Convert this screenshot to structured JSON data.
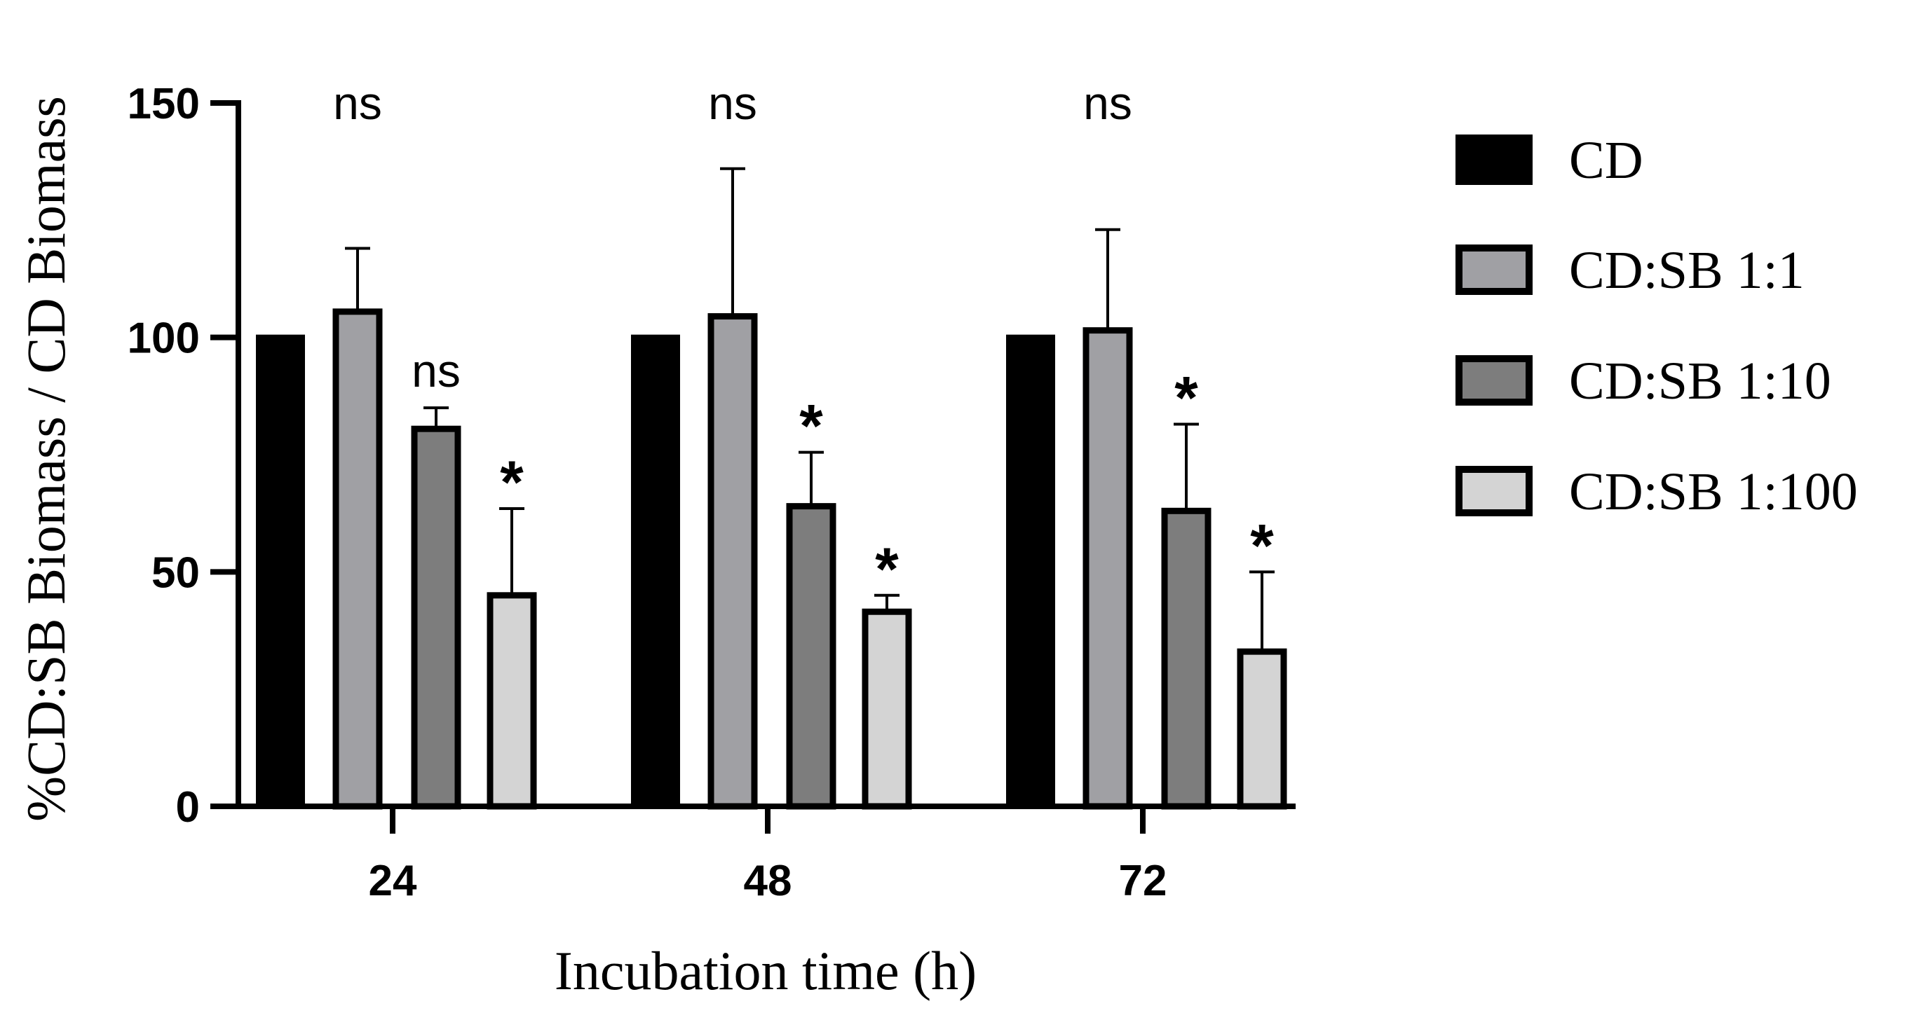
{
  "chart_data": {
    "type": "bar",
    "xlabel": "Incubation time (h)",
    "ylabel": "%CD:SB Biomass / CD Biomass",
    "ylim": [
      0,
      150
    ],
    "yticks": [
      "0",
      "50",
      "100",
      "150"
    ],
    "categories": [
      "24",
      "48",
      "72"
    ],
    "series": [
      {
        "name": "CD",
        "color": "#000000",
        "values": [
          100,
          100,
          100
        ],
        "errors": [
          0,
          0,
          0
        ],
        "significance": [
          "",
          "",
          ""
        ]
      },
      {
        "name": "CD:SB 1:1",
        "color": "#a0a0a4",
        "values": [
          105.5,
          104.5,
          101.5
        ],
        "errors": [
          13.5,
          31.5,
          21.5
        ],
        "significance": [
          "ns",
          "ns",
          "ns"
        ]
      },
      {
        "name": "CD:SB 1:10",
        "color": "#7d7d7d",
        "values": [
          80.5,
          64,
          63
        ],
        "errors": [
          4.5,
          11.5,
          18.5
        ],
        "significance": [
          "ns",
          "*",
          "*"
        ]
      },
      {
        "name": "CD:SB 1:100",
        "color": "#d4d4d4",
        "values": [
          45,
          41.5,
          33
        ],
        "errors": [
          18.5,
          3.5,
          17
        ],
        "significance": [
          "*",
          "*",
          "*"
        ]
      }
    ],
    "legend_position": "right"
  }
}
